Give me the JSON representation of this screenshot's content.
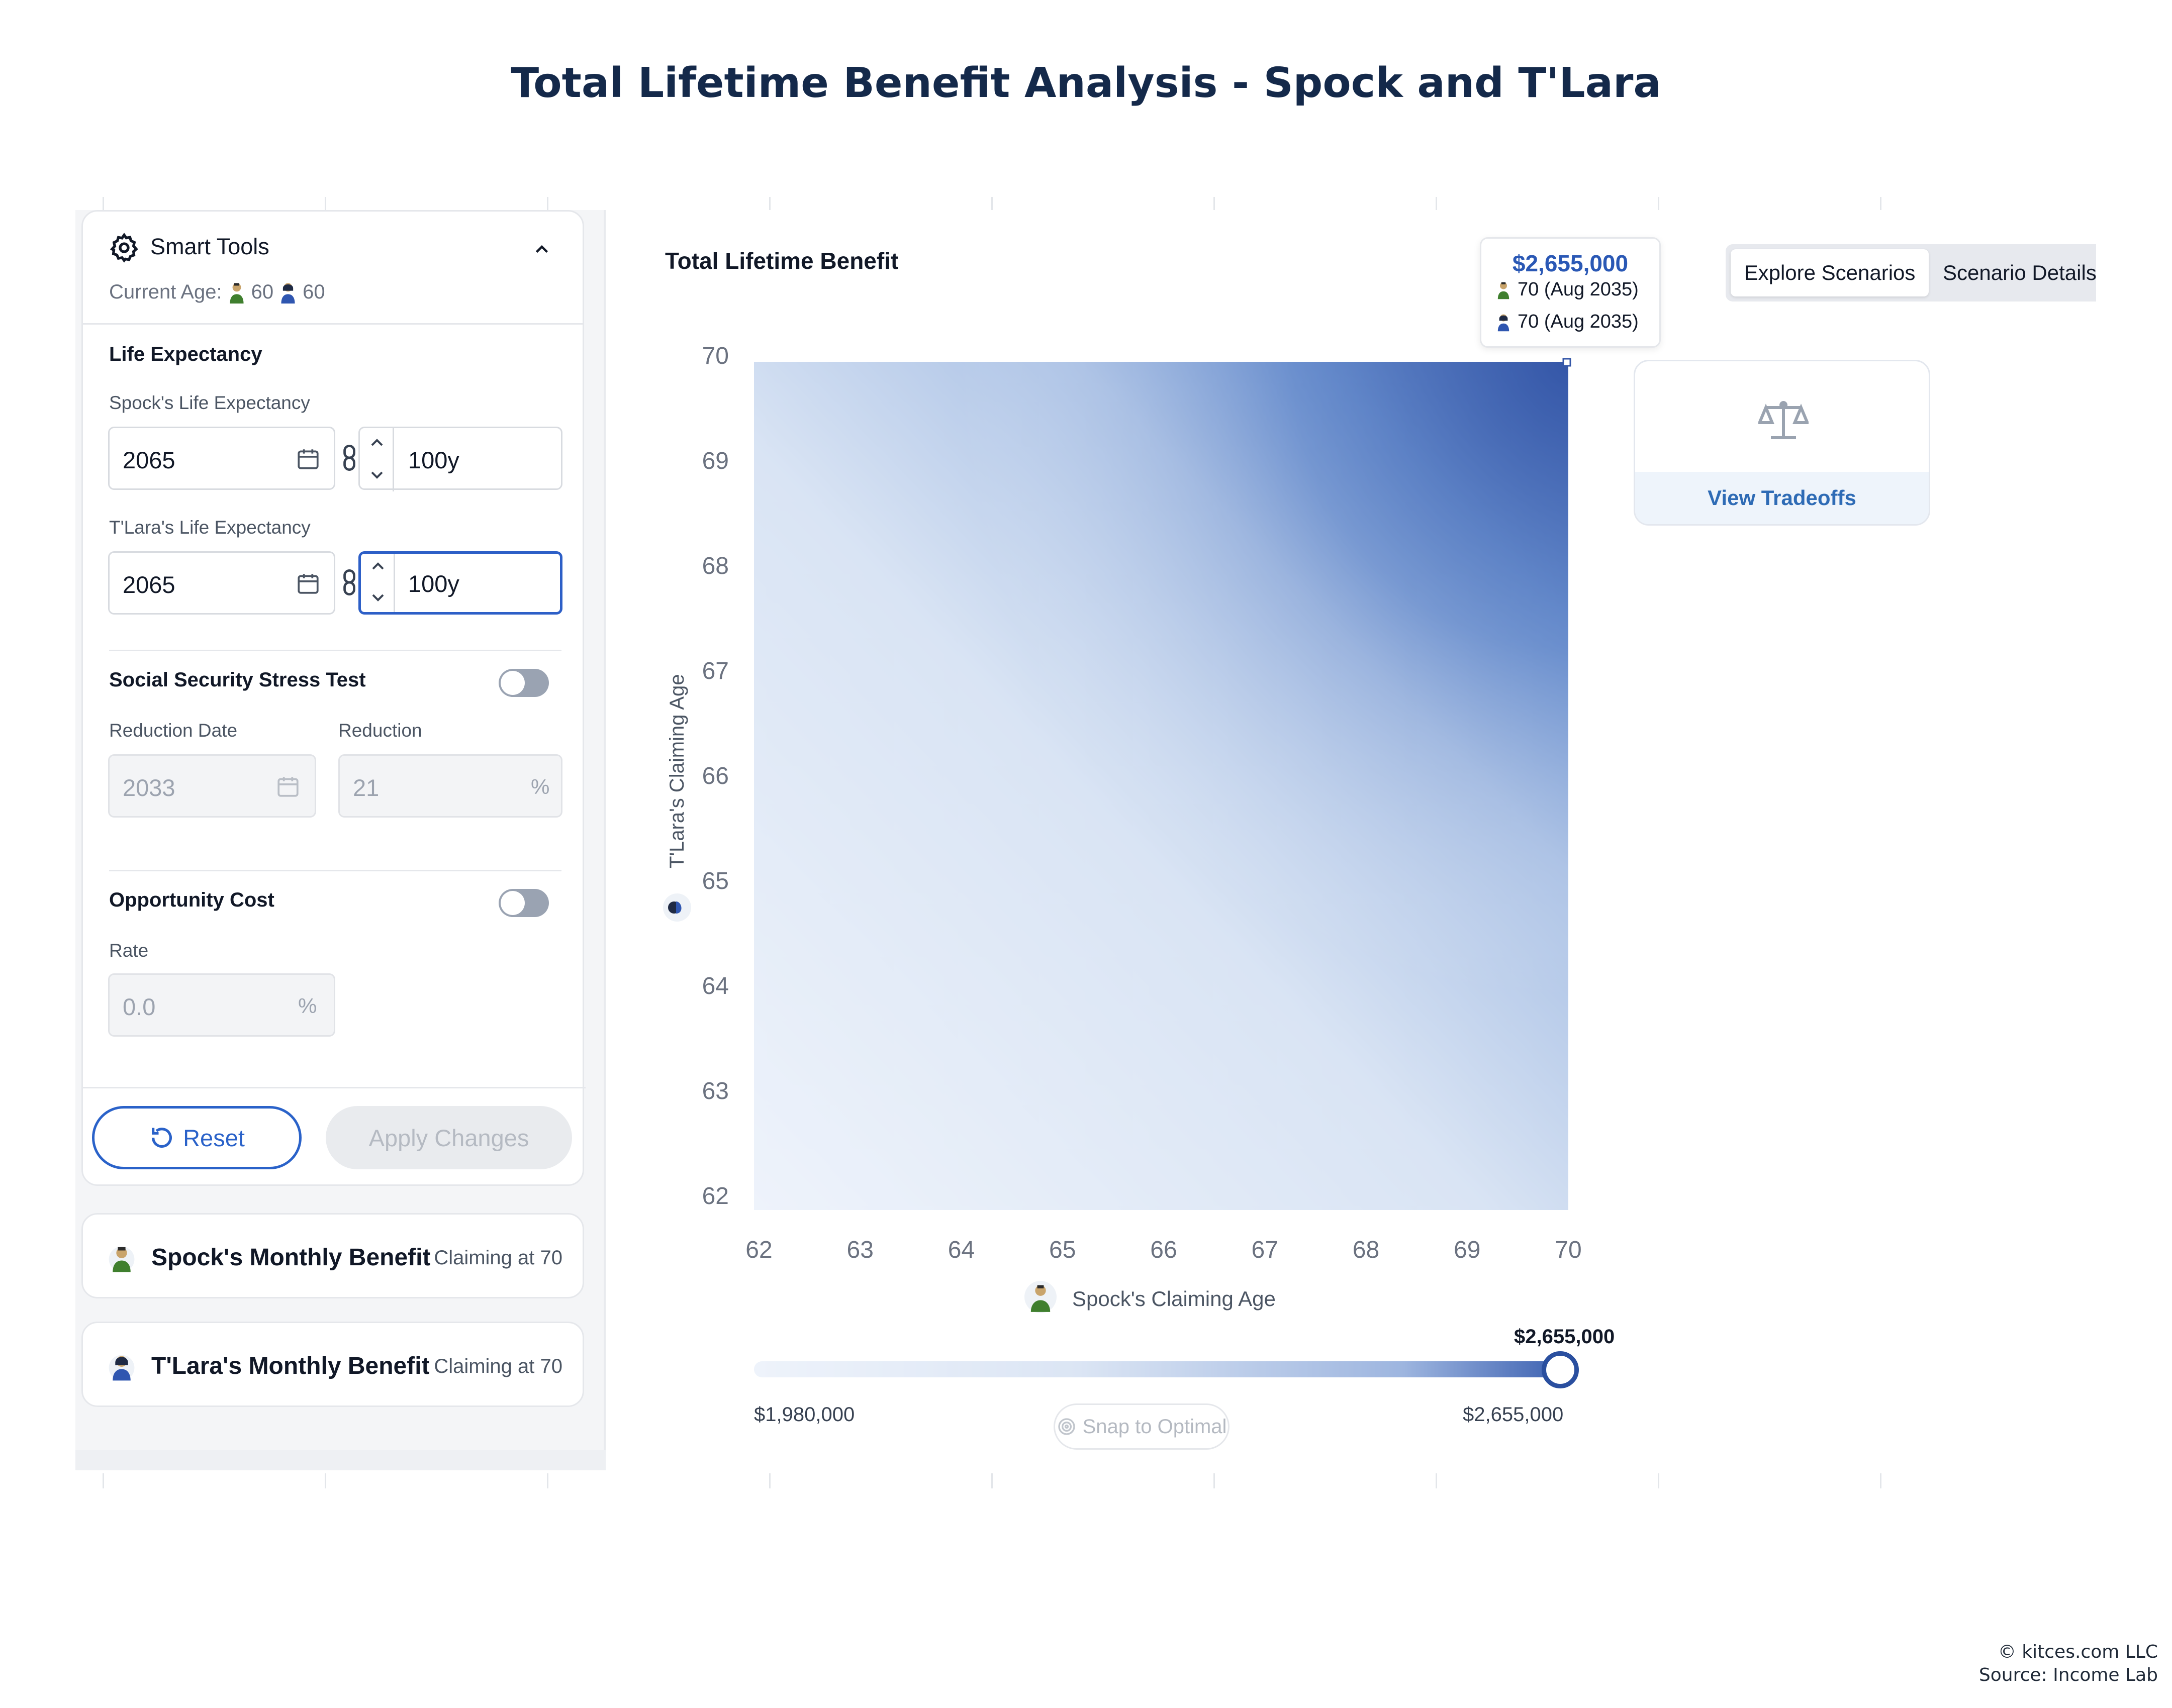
{
  "page": {
    "title": "Total Lifetime Benefit Analysis - Spock and T'Lara",
    "copyright": "© kitces.com LLC",
    "source": "Source: Income Lab"
  },
  "sidebar": {
    "smart_tools": {
      "title": "Smart Tools",
      "current_age_label": "Current Age:",
      "spock_age": "60",
      "tlara_age": "60"
    },
    "life_expectancy": {
      "title": "Life Expectancy",
      "spock_label": "Spock's Life Expectancy",
      "spock_year": "2065",
      "spock_age": "100y",
      "tlara_label": "T'Lara's Life Expectancy",
      "tlara_year": "2065",
      "tlara_age": "100y"
    },
    "stress_test": {
      "title": "Social Security Stress Test",
      "enabled": false,
      "date_label": "Reduction Date",
      "date_value": "2033",
      "reduction_label": "Reduction",
      "reduction_value": "21",
      "reduction_unit": "%"
    },
    "opportunity_cost": {
      "title": "Opportunity Cost",
      "enabled": false,
      "rate_label": "Rate",
      "rate_value": "0.0",
      "rate_unit": "%"
    },
    "buttons": {
      "reset": "Reset",
      "apply": "Apply Changes"
    },
    "benefits": [
      {
        "name": "Spock's Monthly Benefit",
        "claim": "Claiming at 70"
      },
      {
        "name": "T'Lara's Monthly Benefit",
        "claim": "Claiming at 70"
      }
    ]
  },
  "main": {
    "chart_title": "Total Lifetime Benefit",
    "tooltip": {
      "amount": "$2,655,000",
      "spock": "70 (Aug 2035)",
      "tlara": "70 (Aug 2035)"
    },
    "tabs": [
      "Explore Scenarios",
      "Scenario Details"
    ],
    "active_tab": "Explore Scenarios",
    "tradeoffs_label": "View Tradeoffs",
    "slider": {
      "value": "$2,655,000",
      "min": "$1,980,000",
      "max": "$2,655,000",
      "fraction": 1.0,
      "snap_label": "Snap to Optimal"
    },
    "colors": {
      "accent": "#2a62c9",
      "heat_low": "#eef3fb",
      "heat_high": "#3557a8"
    }
  },
  "chart_data": {
    "type": "heatmap",
    "title": "Total Lifetime Benefit",
    "xlabel": "Spock's Claiming Age",
    "ylabel": "T'Lara's Claiming Age",
    "x": [
      62,
      63,
      64,
      65,
      66,
      67,
      68,
      69,
      70
    ],
    "y": [
      62,
      63,
      64,
      65,
      66,
      67,
      68,
      69,
      70
    ],
    "value_range": [
      1980000,
      2655000
    ],
    "selected": {
      "x": 70,
      "y": 70,
      "value": 2655000
    }
  }
}
